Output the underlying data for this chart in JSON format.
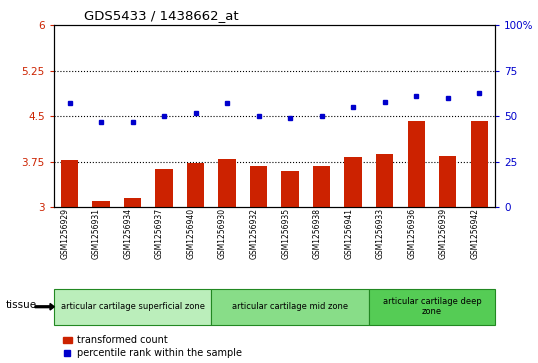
{
  "title": "GDS5433 / 1438662_at",
  "samples": [
    "GSM1256929",
    "GSM1256931",
    "GSM1256934",
    "GSM1256937",
    "GSM1256940",
    "GSM1256930",
    "GSM1256932",
    "GSM1256935",
    "GSM1256938",
    "GSM1256941",
    "GSM1256933",
    "GSM1256936",
    "GSM1256939",
    "GSM1256942"
  ],
  "bar_values": [
    3.78,
    3.1,
    3.14,
    3.62,
    3.72,
    3.8,
    3.67,
    3.6,
    3.67,
    3.83,
    3.87,
    4.42,
    3.84,
    4.42
  ],
  "dot_values": [
    57,
    47,
    47,
    50,
    52,
    57,
    50,
    49,
    50,
    55,
    58,
    61,
    60,
    63
  ],
  "bar_color": "#cc2200",
  "dot_color": "#0000cc",
  "ylim_left": [
    3.0,
    6.0
  ],
  "ylim_right": [
    0,
    100
  ],
  "yticks_left": [
    3.0,
    3.75,
    4.5,
    5.25,
    6.0
  ],
  "ytick_labels_left": [
    "3",
    "3.75",
    "4.5",
    "5.25",
    "6"
  ],
  "yticks_right": [
    0,
    25,
    50,
    75,
    100
  ],
  "ytick_labels_right": [
    "0",
    "25",
    "50",
    "75",
    "100%"
  ],
  "hlines": [
    3.75,
    4.5,
    5.25
  ],
  "groups": [
    {
      "label": "articular cartilage superficial zone",
      "start": 0,
      "end": 5,
      "color": "#bbeebb"
    },
    {
      "label": "articular cartilage mid zone",
      "start": 5,
      "end": 10,
      "color": "#88dd88"
    },
    {
      "label": "articular cartilage deep\nzone",
      "start": 10,
      "end": 14,
      "color": "#55cc55"
    }
  ],
  "tissue_label": "tissue",
  "legend_bar_label": "transformed count",
  "legend_dot_label": "percentile rank within the sample",
  "background_color": "#ffffff",
  "plot_bg_color": "#ffffff",
  "tick_label_color_left": "#cc2200",
  "tick_label_color_right": "#0000cc",
  "group_edge_color": "#228822"
}
